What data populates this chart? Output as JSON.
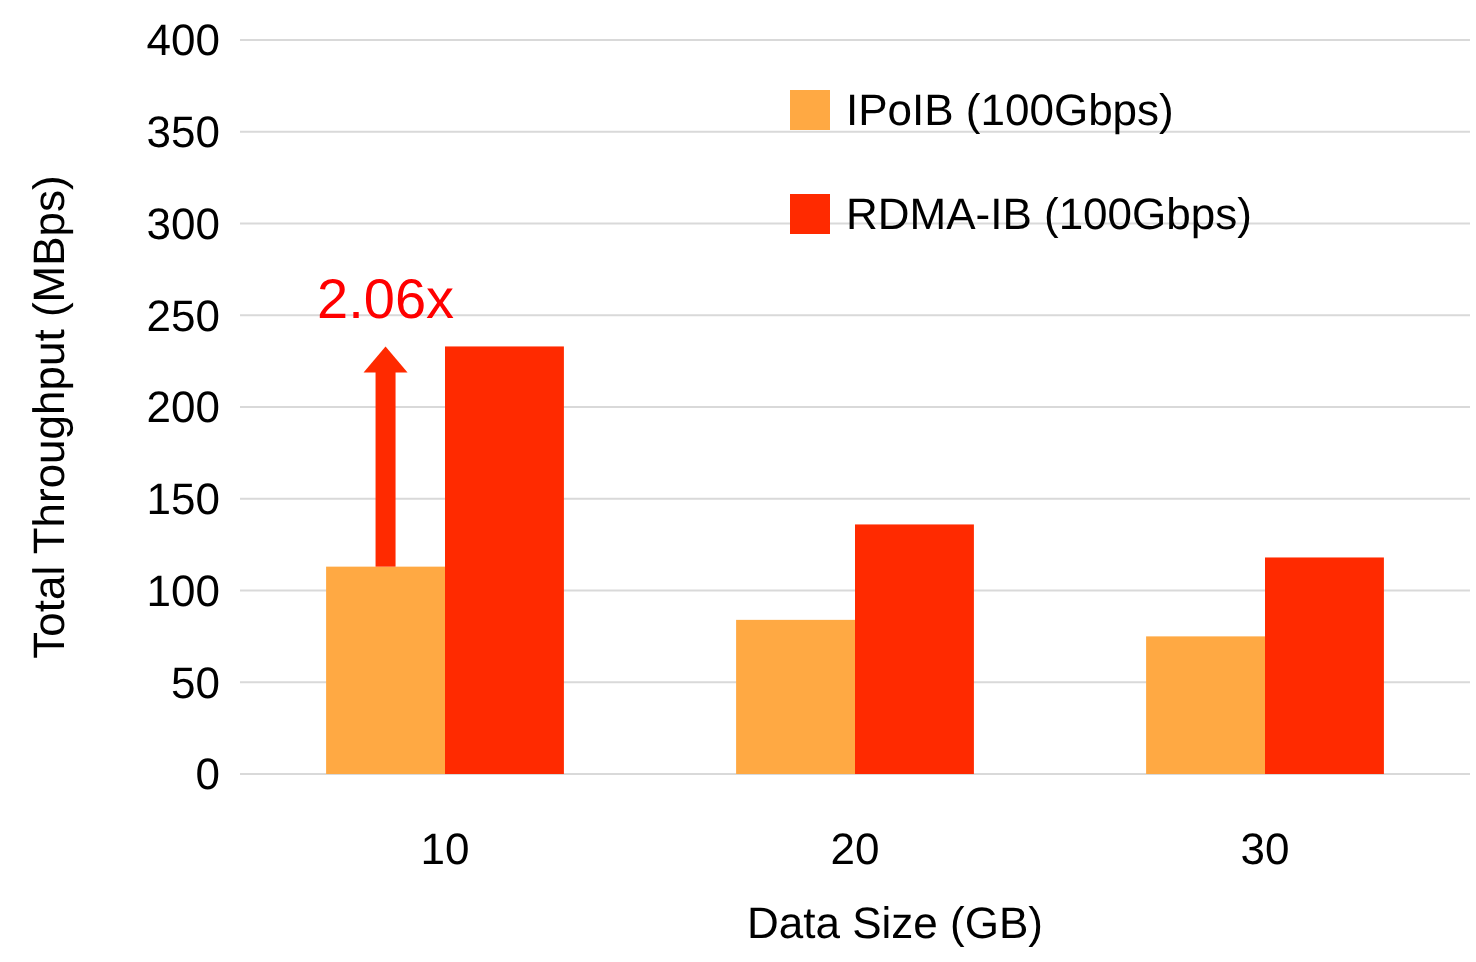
{
  "chart_data": {
    "type": "bar",
    "xlabel": "Data Size (GB)",
    "ylabel": "Total Throughput (MBps)",
    "categories": [
      "10",
      "20",
      "30"
    ],
    "series": [
      {
        "name": "IPoIB (100Gbps)",
        "color": "#ffa943",
        "values": [
          113,
          84,
          75
        ]
      },
      {
        "name": "RDMA-IB (100Gbps)",
        "color": "#ff2a00",
        "values": [
          233,
          136,
          118
        ]
      }
    ],
    "ylim": [
      0,
      400
    ],
    "yticks": [
      0,
      50,
      100,
      150,
      200,
      250,
      300,
      350,
      400
    ],
    "grid": "y",
    "legend": "top right",
    "annotations": [
      {
        "text": "2.06x",
        "x": "10",
        "y": 233
      }
    ]
  }
}
